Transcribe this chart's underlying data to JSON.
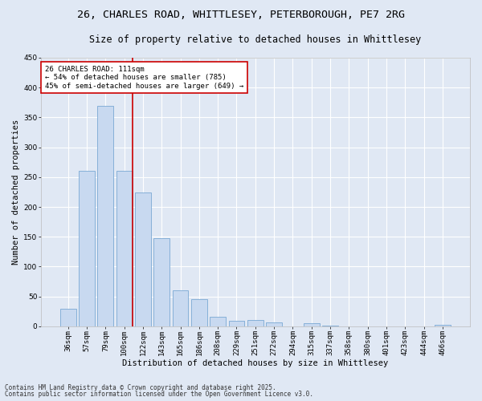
{
  "title1": "26, CHARLES ROAD, WHITTLESEY, PETERBOROUGH, PE7 2RG",
  "title2": "Size of property relative to detached houses in Whittlesey",
  "xlabel": "Distribution of detached houses by size in Whittlesey",
  "ylabel": "Number of detached properties",
  "categories": [
    "36sqm",
    "57sqm",
    "79sqm",
    "100sqm",
    "122sqm",
    "143sqm",
    "165sqm",
    "186sqm",
    "208sqm",
    "229sqm",
    "251sqm",
    "272sqm",
    "294sqm",
    "315sqm",
    "337sqm",
    "358sqm",
    "380sqm",
    "401sqm",
    "423sqm",
    "444sqm",
    "466sqm"
  ],
  "values": [
    30,
    261,
    369,
    261,
    224,
    147,
    60,
    45,
    16,
    9,
    10,
    6,
    0,
    5,
    1,
    0,
    0,
    0,
    0,
    0,
    2
  ],
  "bar_color": "#c8d9f0",
  "bar_edge_color": "#7aa8d4",
  "bg_color": "#e0e8f4",
  "grid_color": "#ffffff",
  "annotation_box_text": "26 CHARLES ROAD: 111sqm\n← 54% of detached houses are smaller (785)\n45% of semi-detached houses are larger (649) →",
  "annotation_box_color": "#ffffff",
  "annotation_box_edge_color": "#cc0000",
  "vline_color": "#cc0000",
  "ylim": [
    0,
    450
  ],
  "yticks": [
    0,
    50,
    100,
    150,
    200,
    250,
    300,
    350,
    400,
    450
  ],
  "footer1": "Contains HM Land Registry data © Crown copyright and database right 2025.",
  "footer2": "Contains public sector information licensed under the Open Government Licence v3.0.",
  "title_fontsize": 9.5,
  "subtitle_fontsize": 8.5,
  "tick_fontsize": 6.5,
  "xlabel_fontsize": 7.5,
  "ylabel_fontsize": 7.5,
  "annotation_fontsize": 6.5,
  "footer_fontsize": 5.5
}
